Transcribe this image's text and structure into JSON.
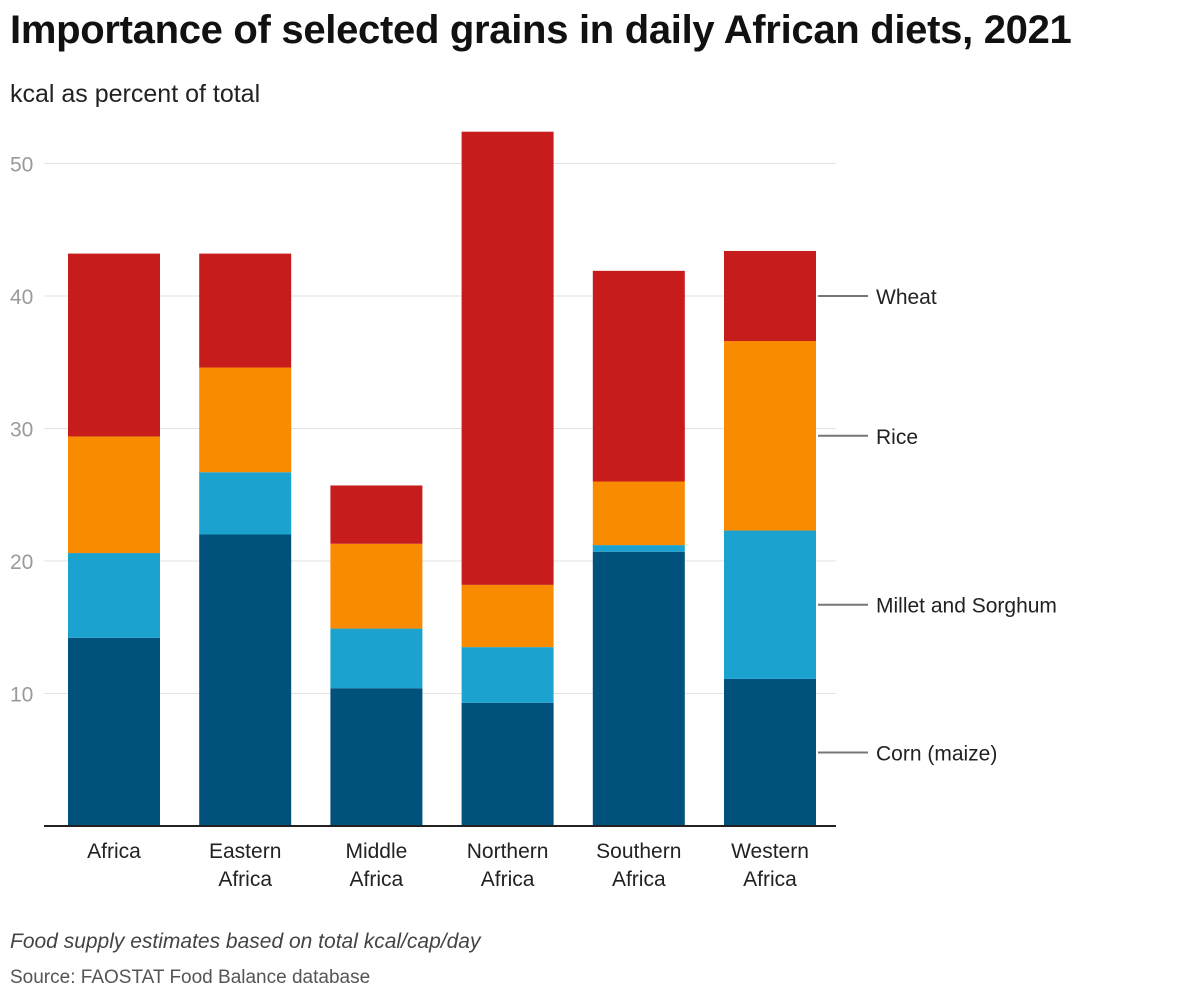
{
  "header": {
    "title": "Importance of selected grains in daily African diets, 2021",
    "subtitle": "kcal as percent of total"
  },
  "footer": {
    "note": "Food supply estimates based on total kcal/cap/day",
    "source": "Source: FAOSTAT Food Balance database"
  },
  "chart_data": {
    "type": "bar",
    "stacked": true,
    "title": "Importance of selected grains in daily African diets, 2021",
    "ylabel": "kcal as percent of total",
    "ylim": [
      0,
      52
    ],
    "yticks": [
      10,
      20,
      30,
      40,
      50
    ],
    "grid": true,
    "legend": "right, labels aligned with last bar",
    "categories": [
      [
        "Africa"
      ],
      [
        "Eastern",
        "Africa"
      ],
      [
        "Middle",
        "Africa"
      ],
      [
        "Northern",
        "Africa"
      ],
      [
        "Southern",
        "Africa"
      ],
      [
        "Western",
        "Africa"
      ]
    ],
    "series": [
      {
        "name": "Corn (maize)",
        "color": "#00527c",
        "values": [
          14.2,
          22.0,
          10.4,
          9.3,
          20.7,
          11.1
        ]
      },
      {
        "name": "Millet and Sorghum",
        "color": "#1ba2cf",
        "values": [
          6.4,
          4.7,
          4.5,
          4.2,
          0.5,
          11.2
        ]
      },
      {
        "name": "Rice",
        "color": "#f98b00",
        "values": [
          8.8,
          7.9,
          6.4,
          4.7,
          4.8,
          14.3
        ]
      },
      {
        "name": "Wheat",
        "color": "#c61d1c",
        "values": [
          13.8,
          8.6,
          4.4,
          34.2,
          15.9,
          6.8
        ]
      }
    ]
  }
}
